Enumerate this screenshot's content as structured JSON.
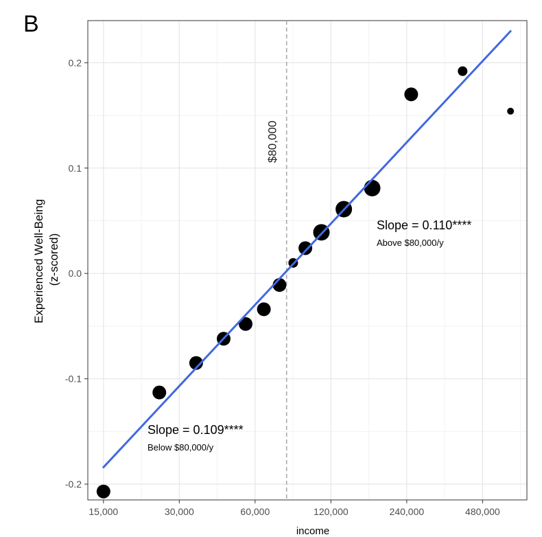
{
  "panel_label": "B",
  "chart_data": {
    "type": "scatter",
    "title": "",
    "xlabel": "income",
    "ylabel_lines": [
      "Experienced Well-Being",
      "(z-scored)"
    ],
    "x_scale": "log2",
    "x_ticks": [
      15000,
      30000,
      60000,
      120000,
      240000,
      480000
    ],
    "x_tick_labels": [
      "15,000",
      "30,000",
      "60,000",
      "120,000",
      "240,000",
      "480,000"
    ],
    "xlim": [
      13000,
      720000
    ],
    "y_ticks": [
      -0.2,
      -0.1,
      0.0,
      0.1,
      0.2
    ],
    "y_tick_labels": [
      "-0.2",
      "-0.1",
      "0.0",
      "0.1",
      "0.2"
    ],
    "ylim": [
      -0.215,
      0.24
    ],
    "grid": true,
    "points": [
      {
        "x": 15000,
        "y": -0.207,
        "size": "medium"
      },
      {
        "x": 25000,
        "y": -0.113,
        "size": "medium"
      },
      {
        "x": 35000,
        "y": -0.085,
        "size": "medium"
      },
      {
        "x": 45000,
        "y": -0.062,
        "size": "medium"
      },
      {
        "x": 55000,
        "y": -0.048,
        "size": "medium"
      },
      {
        "x": 65000,
        "y": -0.034,
        "size": "medium"
      },
      {
        "x": 75000,
        "y": -0.011,
        "size": "medium"
      },
      {
        "x": 85000,
        "y": 0.01,
        "size": "small"
      },
      {
        "x": 95000,
        "y": 0.024,
        "size": "medium"
      },
      {
        "x": 110000,
        "y": 0.039,
        "size": "large"
      },
      {
        "x": 135000,
        "y": 0.061,
        "size": "large"
      },
      {
        "x": 175000,
        "y": 0.081,
        "size": "large"
      },
      {
        "x": 250000,
        "y": 0.17,
        "size": "medium"
      },
      {
        "x": 400000,
        "y": 0.192,
        "size": "small"
      },
      {
        "x": 620000,
        "y": 0.154,
        "size": "xsmall"
      }
    ],
    "fit_line": {
      "color": "#4169e1",
      "x": [
        15000,
        620000
      ],
      "y": [
        -0.184,
        0.23
      ]
    },
    "threshold": {
      "x": 80000,
      "label": "$80,000",
      "color": "#aaaaaa"
    },
    "annotations": [
      {
        "id": "below",
        "title": "Slope = 0.109****",
        "subtitle": "Below $80,000/y"
      },
      {
        "id": "above",
        "title": "Slope = 0.110****",
        "subtitle": "Above $80,000/y"
      }
    ]
  }
}
